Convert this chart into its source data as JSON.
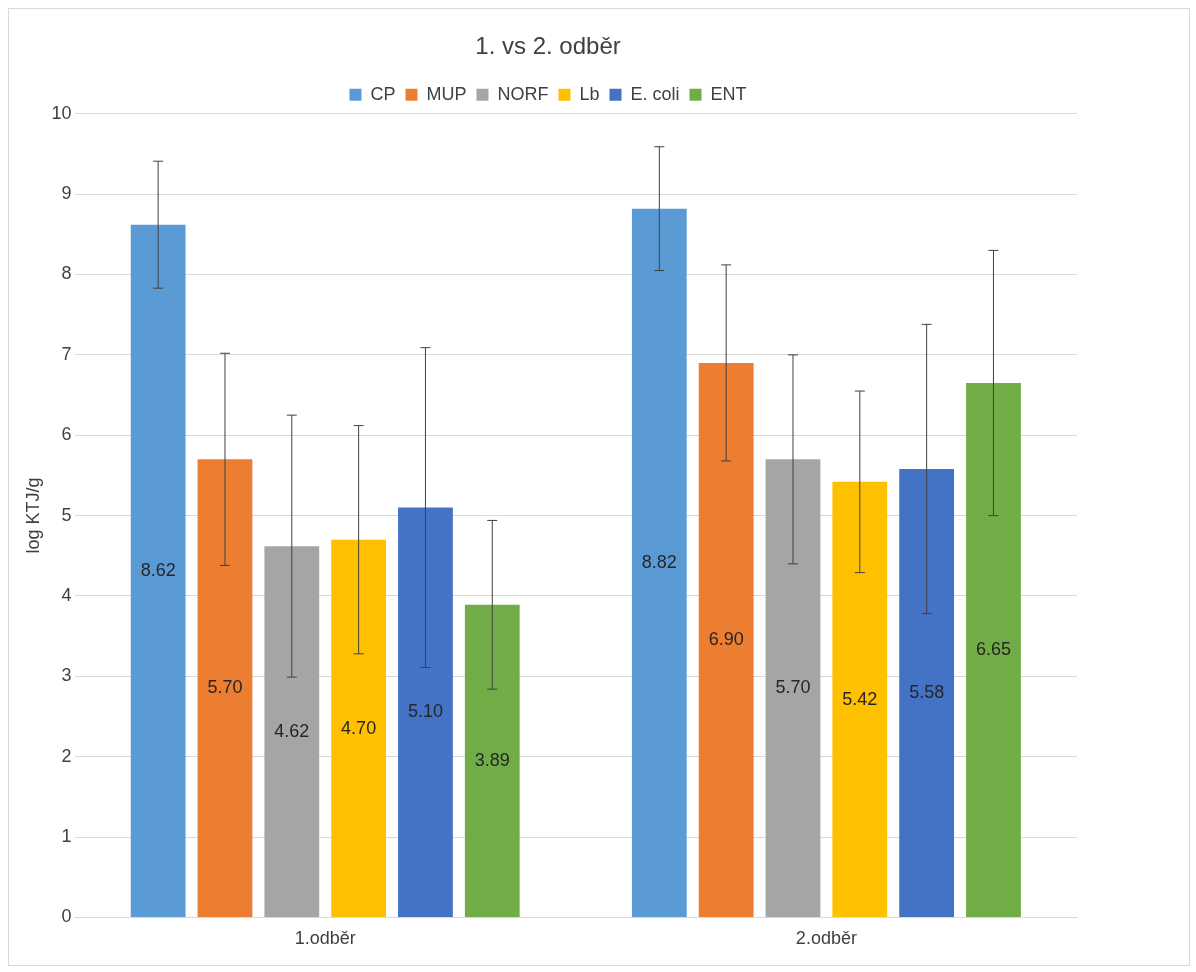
{
  "chart_data": {
    "type": "bar",
    "title": "1. vs 2. odběr",
    "ylabel": "log KTJ/g",
    "categories": [
      "1.odběr",
      "2.odběr"
    ],
    "series": [
      {
        "name": "CP",
        "color": "#5b9bd5",
        "values": [
          8.62,
          8.82
        ],
        "value_labels": [
          "8.62",
          "8.82"
        ],
        "errors": [
          0.79,
          0.77
        ]
      },
      {
        "name": "MUP",
        "color": "#ed7d31",
        "values": [
          5.7,
          6.9
        ],
        "value_labels": [
          "5.70",
          "6.90"
        ],
        "errors": [
          1.32,
          1.22
        ]
      },
      {
        "name": "NORF",
        "color": "#a5a5a5",
        "values": [
          4.62,
          5.7
        ],
        "value_labels": [
          "4.62",
          "5.70"
        ],
        "errors": [
          1.63,
          1.3
        ]
      },
      {
        "name": "Lb",
        "color": "#ffc000",
        "values": [
          4.7,
          5.42
        ],
        "value_labels": [
          "4.70",
          "5.42"
        ],
        "errors": [
          1.42,
          1.13
        ]
      },
      {
        "name": "E. coli",
        "color": "#4472c4",
        "values": [
          5.1,
          5.58
        ],
        "value_labels": [
          "5.10",
          "5.58"
        ],
        "errors": [
          1.99,
          1.8
        ]
      },
      {
        "name": "ENT",
        "color": "#70ad47",
        "values": [
          3.89,
          6.65
        ],
        "value_labels": [
          "3.89",
          "6.65"
        ],
        "errors": [
          1.05,
          1.65
        ]
      }
    ],
    "ylim": [
      0,
      10
    ],
    "yticks": [
      0,
      1,
      2,
      3,
      4,
      5,
      6,
      7,
      8,
      9,
      10
    ],
    "grid": "y",
    "legend": "top"
  }
}
